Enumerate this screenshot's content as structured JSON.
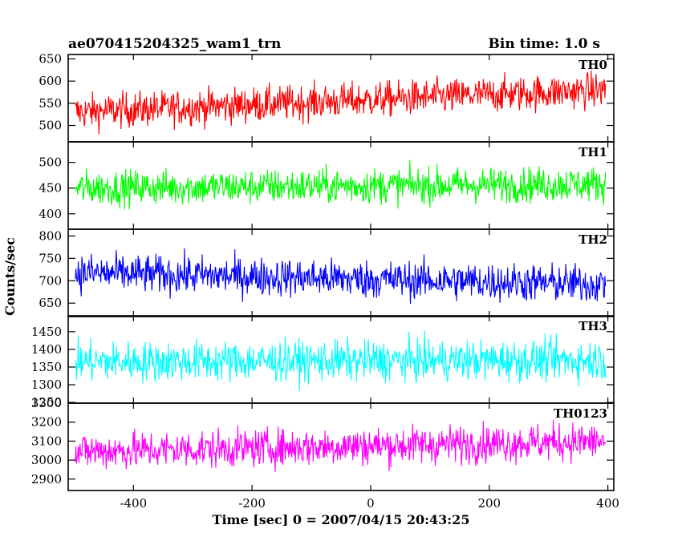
{
  "header": {
    "title": "ae070415204325_wam1_trn",
    "bin_time": "Bin time: 1.0 s"
  },
  "axes": {
    "ylabel": "Counts/sec",
    "xlabel": "Time [sec] 0 = 2007/04/15 20:43:25"
  },
  "chart_data": [
    {
      "type": "line",
      "name": "TH0",
      "color": "#ff0000",
      "xlim": [
        -510,
        410
      ],
      "ylim": [
        463,
        660
      ],
      "yticks": [
        500,
        550,
        600,
        650
      ],
      "mean_start": 530,
      "mean_end": 580,
      "noise_amp": 28,
      "values_note_range": [
        470,
        655
      ]
    },
    {
      "type": "line",
      "name": "TH1",
      "color": "#00ff00",
      "xlim": [
        -510,
        410
      ],
      "ylim": [
        370,
        540
      ],
      "yticks": [
        400,
        450,
        500
      ],
      "mean_start": 450,
      "mean_end": 458,
      "noise_amp": 24,
      "values_note_range": [
        378,
        528
      ]
    },
    {
      "type": "line",
      "name": "TH2",
      "color": "#0000ff",
      "xlim": [
        -510,
        410
      ],
      "ylim": [
        620,
        815
      ],
      "yticks": [
        650,
        700,
        750,
        800
      ],
      "mean_start": 718,
      "mean_end": 692,
      "noise_amp": 30,
      "values_note_range": [
        625,
        812
      ]
    },
    {
      "type": "line",
      "name": "TH3",
      "color": "#00ffff",
      "xlim": [
        -510,
        410
      ],
      "ylim": [
        1248,
        1495
      ],
      "yticks": [
        1250,
        1300,
        1350,
        1400,
        1450
      ],
      "mean_start": 1365,
      "mean_end": 1370,
      "noise_amp": 40,
      "values_note_range": [
        1255,
        1492
      ]
    },
    {
      "type": "line",
      "name": "TH0123",
      "color": "#ff00ff",
      "xlim": [
        -510,
        410
      ],
      "ylim": [
        2840,
        3300
      ],
      "yticks": [
        2900,
        3000,
        3100,
        3200,
        3300
      ],
      "mean_start": 3045,
      "mean_end": 3100,
      "noise_amp": 70,
      "values_note_range": [
        2850,
        3285
      ]
    }
  ],
  "xticks": [
    -400,
    -200,
    0,
    200,
    400
  ],
  "x_start": -498,
  "x_end": 396,
  "x_step": 1
}
